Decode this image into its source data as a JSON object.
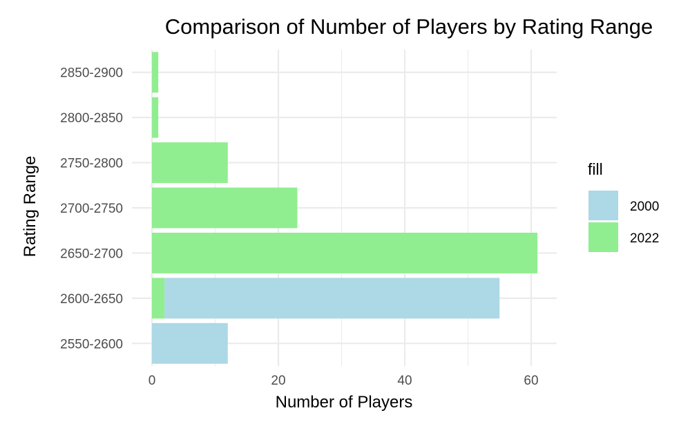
{
  "chart_data": {
    "type": "bar",
    "orientation": "horizontal",
    "stacked": true,
    "title": "Comparison of Number of Players by Rating Range",
    "xlabel": "Number of Players",
    "ylabel": "Rating Range",
    "xlim": [
      0,
      64
    ],
    "xticks": [
      0,
      20,
      40,
      60
    ],
    "grid": true,
    "categories": [
      "2550-2600",
      "2600-2650",
      "2650-2700",
      "2700-2750",
      "2750-2800",
      "2800-2850",
      "2850-2900"
    ],
    "series": [
      {
        "name": "2000",
        "color": "#add8e6",
        "values": [
          12,
          53,
          0,
          0,
          0,
          0,
          0
        ]
      },
      {
        "name": "2022",
        "color": "#90ee90",
        "values": [
          0,
          2,
          61,
          23,
          12,
          1,
          1
        ]
      }
    ],
    "legend": {
      "title": "fill",
      "position": "right"
    }
  }
}
